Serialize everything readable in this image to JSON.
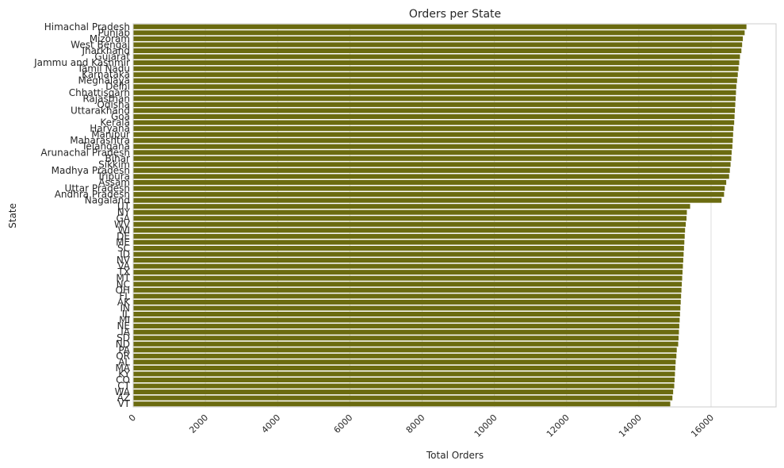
{
  "chart_data": {
    "type": "bar",
    "orientation": "horizontal",
    "title": "Orders per State",
    "xlabel": "Total Orders",
    "ylabel": "State",
    "xlim": [
      0,
      17800
    ],
    "xticks": [
      0,
      2000,
      4000,
      6000,
      8000,
      10000,
      12000,
      14000,
      16000
    ],
    "grid": "vertical",
    "bar_color": "#6b6b10",
    "categories": [
      "Himachal Pradesh",
      "Punjab",
      "Mizoram",
      "West Bengal",
      "Jharkhand",
      "Gujarat",
      "Jammu and Kashmir",
      "Tamil Nadu",
      "Karnataka",
      "Meghalaya",
      "Delhi",
      "Chhattisgarh",
      "Rajasthan",
      "Odisha",
      "Uttarakhand",
      "Goa",
      "Kerala",
      "Haryana",
      "Manipur",
      "Maharashtra",
      "Telangana",
      "Arunachal Pradesh",
      "Bihar",
      "Sikkim",
      "Madhya Pradesh",
      "Tripura",
      "Assam",
      "Uttar Pradesh",
      "Andhra Pradesh",
      "Nagaland",
      "UT",
      "NY",
      "GA",
      "WV",
      "WI",
      "DE",
      "ME",
      "SC",
      "ID",
      "NV",
      "VA",
      "TX",
      "MT",
      "NC",
      "OH",
      "FL",
      "AK",
      "IN",
      "IL",
      "MI",
      "NE",
      "IA",
      "SD",
      "ND",
      "PA",
      "OR",
      "AL",
      "MA",
      "KY",
      "CO",
      "CT",
      "WA",
      "AZ",
      "VT"
    ],
    "values": [
      16980,
      16930,
      16880,
      16860,
      16840,
      16800,
      16780,
      16760,
      16740,
      16720,
      16700,
      16690,
      16680,
      16670,
      16660,
      16650,
      16640,
      16620,
      16610,
      16600,
      16590,
      16570,
      16560,
      16540,
      16520,
      16500,
      16420,
      16380,
      16360,
      16290,
      15420,
      15330,
      15320,
      15300,
      15280,
      15270,
      15260,
      15250,
      15240,
      15230,
      15220,
      15210,
      15200,
      15190,
      15180,
      15170,
      15160,
      15150,
      15140,
      15130,
      15120,
      15110,
      15100,
      15090,
      15050,
      15040,
      15020,
      15010,
      15000,
      14990,
      14980,
      14950,
      14930,
      14870
    ]
  }
}
